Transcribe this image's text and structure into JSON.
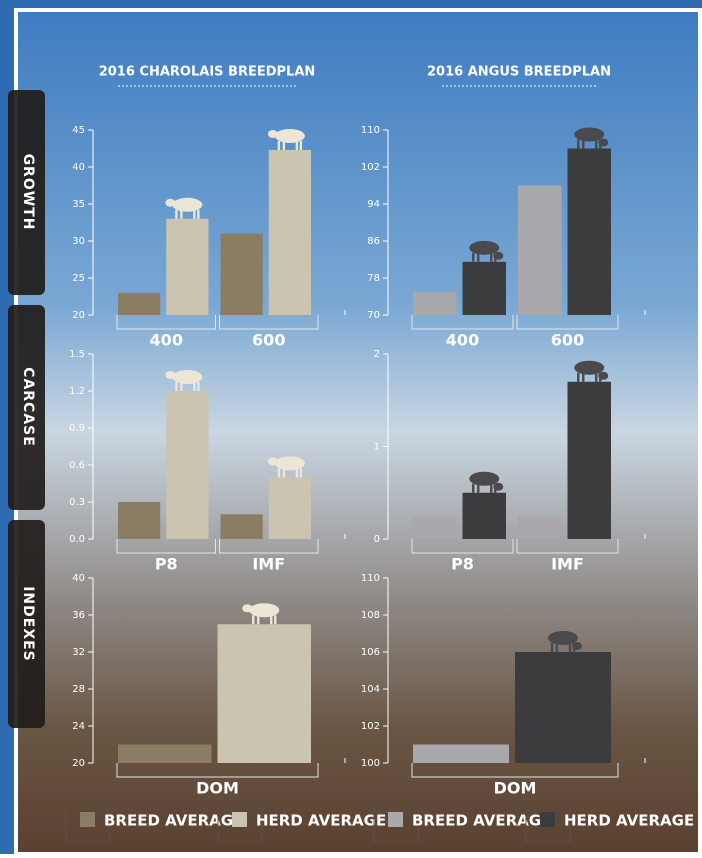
{
  "columns": [
    {
      "title": "2016 CHAROLAIS BREEDPLAN"
    },
    {
      "title": "2016 ANGUS BREEDPLAN"
    }
  ],
  "sections": [
    "GROWTH",
    "CARCASE",
    "INDEXES"
  ],
  "legends": [
    [
      {
        "name": "BREED AVERAGE",
        "color": "#8b7d63"
      },
      {
        "name": "HERD AVERAGE",
        "color": "#cbc4b0"
      }
    ],
    [
      {
        "name": "BREED AVERAGE",
        "color": "#a9a9ad"
      },
      {
        "name": "HERD AVERAGE",
        "color": "#3c3c3e"
      }
    ]
  ],
  "chart_data": [
    {
      "type": "bar",
      "categories": [
        "400",
        "600"
      ],
      "ylim": [
        20,
        45
      ],
      "yticks": [
        20,
        25,
        30,
        35,
        40,
        45
      ],
      "series": [
        {
          "color": "#8b7d63",
          "values": [
            23,
            31
          ]
        },
        {
          "color": "#cbc4b0",
          "values": [
            33,
            42.3
          ]
        }
      ]
    },
    {
      "type": "bar",
      "categories": [
        "400",
        "600"
      ],
      "ylim": [
        70,
        110
      ],
      "yticks": [
        70,
        78,
        86,
        94,
        102,
        110
      ],
      "series": [
        {
          "color": "#a9a9ad",
          "values": [
            75,
            98
          ]
        },
        {
          "color": "#3c3c3e",
          "values": [
            81.5,
            106
          ]
        }
      ]
    },
    {
      "type": "bar",
      "categories": [
        "P8",
        "IMF"
      ],
      "ylim": [
        0,
        1.5
      ],
      "yticks": [
        {
          "value": 0,
          "label": "0.0"
        },
        0.3,
        0.6,
        0.9,
        1.2,
        1.5
      ],
      "series": [
        {
          "color": "#8b7d63",
          "values": [
            0.3,
            0.2
          ]
        },
        {
          "color": "#cbc4b0",
          "values": [
            1.2,
            0.5
          ]
        }
      ]
    },
    {
      "type": "bar",
      "categories": [
        "P8",
        "IMF"
      ],
      "ylim": [
        0,
        2
      ],
      "yticks": [
        0,
        1,
        2
      ],
      "series": [
        {
          "color": "#a9a9ad",
          "values": [
            0.25,
            0.25
          ]
        },
        {
          "color": "#3c3c3e",
          "values": [
            0.5,
            1.7
          ]
        }
      ]
    },
    {
      "type": "bar",
      "categories": [
        "DOM"
      ],
      "ylim": [
        20,
        40
      ],
      "yticks": [
        20,
        24,
        28,
        32,
        36,
        40
      ],
      "series": [
        {
          "color": "#8b7d63",
          "values": [
            22
          ]
        },
        {
          "color": "#cbc4b0",
          "values": [
            35
          ]
        }
      ]
    },
    {
      "type": "bar",
      "categories": [
        "DOM"
      ],
      "ylim": [
        100,
        110
      ],
      "yticks": [
        100,
        102,
        104,
        106,
        108,
        110
      ],
      "series": [
        {
          "color": "#a9a9ad",
          "values": [
            101
          ]
        },
        {
          "color": "#3c3c3e",
          "values": [
            106
          ]
        }
      ]
    }
  ]
}
